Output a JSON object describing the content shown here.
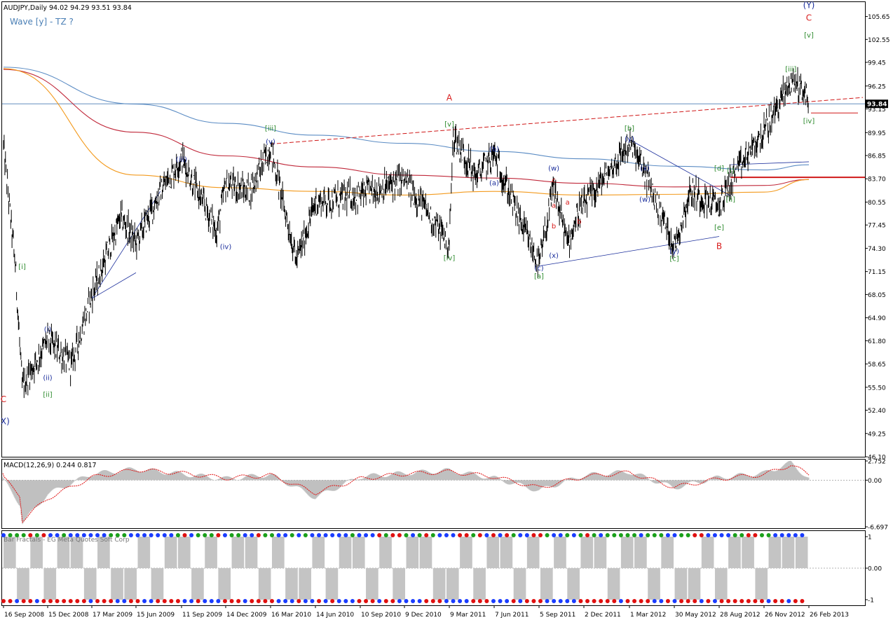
{
  "header": {
    "title": "AUDJPY,Daily  94.02 94.29 93.51 93.84",
    "subtitle": "Wave [y] - TZ ?"
  },
  "colors": {
    "candle": "#000000",
    "price_line": "#4a7fb5",
    "ma_blue": "#5b8cc4",
    "ma_red": "#c0283a",
    "ma_orange": "#f39a1d",
    "trend_red": "#d01818",
    "wave_blue": "#1c2f9c",
    "wave_green": "#2e8b2e",
    "wave_red": "#d81c1c",
    "macd_hist": "#c0c0c0",
    "macd_signal": "#e01010",
    "dot_blue": "#1a3cff",
    "dot_green": "#1aa01a",
    "dot_red": "#e01010"
  },
  "chart_data": [
    {
      "type": "line",
      "name": "AUDJPY Daily price",
      "ylim": [
        46.1,
        107.6
      ],
      "y_ticks": [
        "105.65",
        "102.55",
        "99.45",
        "96.25",
        "93.15",
        "89.95",
        "86.85",
        "83.70",
        "80.55",
        "77.45",
        "74.30",
        "71.15",
        "68.05",
        "64.90",
        "61.80",
        "58.65",
        "55.50",
        "52.40",
        "49.25",
        "46.10"
      ],
      "x_ticks": [
        "16 Sep 2008",
        "15 Dec 2008",
        "17 Mar 2009",
        "15 Jun 2009",
        "11 Sep 2009",
        "14 Dec 2009",
        "16 Mar 2010",
        "14 Jun 2010",
        "10 Sep 2010",
        "9 Dec 2010",
        "9 Mar 2011",
        "7 Jun 2011",
        "5 Sep 2011",
        "2 Dec 2011",
        "1 Mar 2012",
        "30 May 2012",
        "28 Aug 2012",
        "26 Nov 2012",
        "26 Feb 2013"
      ],
      "price_label": "93.84",
      "x": [
        "16 Sep 2008",
        "10 Oct 2008",
        "24 Oct 2008",
        "15 Dec 2008",
        "2 Feb 2009",
        "17 Mar 2009",
        "15 May 2009",
        "15 Jun 2009",
        "1 Aug 2009",
        "11 Sep 2009",
        "25 Nov 2009",
        "14 Dec 2009",
        "1 Feb 2010",
        "16 Mar 2010",
        "7 May 2010",
        "14 Jun 2010",
        "10 Sep 2010",
        "9 Dec 2010",
        "9 Mar 2011",
        "17 Mar 2011",
        "1 May 2011",
        "7 Jun 2011",
        "1 Aug 2011",
        "5 Sep 2011",
        "4 Oct 2011",
        "31 Oct 2011",
        "23 Nov 2011",
        "2 Dec 2011",
        "1 Mar 2012",
        "1 Apr 2012",
        "30 May 2012",
        "1 Jul 2012",
        "28 Aug 2012",
        "20 Sep 2012",
        "26 Nov 2012",
        "20 Jan 2013",
        "12 Feb 2013",
        "26 Feb 2013"
      ],
      "close": [
        88.0,
        72.0,
        55.5,
        62.0,
        58.5,
        68.0,
        78.5,
        75.0,
        82.0,
        86.5,
        76.5,
        83.0,
        82.0,
        88.0,
        72.5,
        80.5,
        81.5,
        83.5,
        75.0,
        89.5,
        84.0,
        87.0,
        77.5,
        72.0,
        82.5,
        75.0,
        79.5,
        80.0,
        88.5,
        84.5,
        74.5,
        82.0,
        80.0,
        83.5,
        90.0,
        97.0,
        96.0,
        93.84
      ],
      "series": [
        {
          "name": "MA (blue)",
          "x": [
            "16 Sep 2008",
            "15 Jun 2009",
            "14 Dec 2009",
            "14 Jun 2010",
            "9 Dec 2010",
            "7 Jun 2011",
            "2 Dec 2011",
            "30 May 2012",
            "26 Nov 2012",
            "26 Feb 2013"
          ],
          "values": [
            98.8,
            93.8,
            91.2,
            89.6,
            88.5,
            87.4,
            86.4,
            85.4,
            84.9,
            85.6
          ]
        },
        {
          "name": "MA (red)",
          "x": [
            "16 Sep 2008",
            "15 Jun 2009",
            "14 Dec 2009",
            "14 Jun 2010",
            "9 Dec 2010",
            "7 Jun 2011",
            "2 Dec 2011",
            "30 May 2012",
            "26 Nov 2012",
            "26 Feb 2013"
          ],
          "values": [
            98.5,
            90.0,
            86.8,
            85.3,
            84.2,
            83.8,
            83.1,
            82.6,
            82.8,
            83.6
          ]
        },
        {
          "name": "MA (orange)",
          "x": [
            "16 Sep 2008",
            "15 Jun 2009",
            "14 Dec 2009",
            "14 Jun 2010",
            "9 Dec 2010",
            "7 Jun 2011",
            "2 Dec 2011",
            "30 May 2012",
            "26 Nov 2012",
            "26 Feb 2013"
          ],
          "values": [
            98.6,
            84.2,
            82.5,
            82.0,
            81.5,
            82.0,
            81.5,
            81.6,
            81.9,
            83.6
          ]
        }
      ],
      "annotations": [
        {
          "text": "C",
          "x": "16 Sep 2008",
          "y": 53.5,
          "color": "red"
        },
        {
          "text": "(X)",
          "x": "16 Sep 2008",
          "y": 50.5,
          "color": "blue"
        },
        {
          "text": "[i]",
          "x": "24 Oct 2008",
          "y": 71.5,
          "color": "green"
        },
        {
          "text": "(i)",
          "x": "15 Dec 2008",
          "y": 63.0,
          "color": "blue"
        },
        {
          "text": "(ii)",
          "x": "15 Dec 2008",
          "y": 56.5,
          "color": "blue"
        },
        {
          "text": "[ii]",
          "x": "15 Dec 2008",
          "y": 54.2,
          "color": "green"
        },
        {
          "text": "(iii)",
          "x": "11 Sep 2009",
          "y": 86.0,
          "color": "blue"
        },
        {
          "text": "(iv)",
          "x": "14 Dec 2009",
          "y": 74.2,
          "color": "blue"
        },
        {
          "text": "[iii]",
          "x": "16 Mar 2010",
          "y": 90.2,
          "color": "green"
        },
        {
          "text": "(v)",
          "x": "16 Mar 2010",
          "y": 88.4,
          "color": "blue"
        },
        {
          "text": "[iv]",
          "x": "9 Mar 2011",
          "y": 72.7,
          "color": "green"
        },
        {
          "text": "[v]",
          "x": "9 Mar 2011",
          "y": 90.8,
          "color": "green"
        },
        {
          "text": "A",
          "x": "9 Mar 2011",
          "y": 94.3,
          "color": "red"
        },
        {
          "text": "(a)",
          "x": "7 Jun 2011",
          "y": 82.8,
          "color": "blue"
        },
        {
          "text": "(b)",
          "x": "7 Jun 2011",
          "y": 87.4,
          "color": "blue"
        },
        {
          "text": "(c)",
          "x": "5 Sep 2011",
          "y": 71.3,
          "color": "blue"
        },
        {
          "text": "[a]",
          "x": "5 Sep 2011",
          "y": 70.2,
          "color": "green"
        },
        {
          "text": "(w)",
          "x": "4 Oct 2011",
          "y": 84.8,
          "color": "blue"
        },
        {
          "text": "(x)",
          "x": "4 Oct 2011",
          "y": 73.0,
          "color": "blue"
        },
        {
          "text": "a",
          "x": "4 Oct 2011",
          "y": 79.8,
          "color": "red"
        },
        {
          "text": "b",
          "x": "4 Oct 2011",
          "y": 77.0,
          "color": "red"
        },
        {
          "text": "c",
          "x": "4 Oct 2011",
          "y": 83.2,
          "color": "red"
        },
        {
          "text": "a",
          "x": "31 Oct 2011",
          "y": 80.2,
          "color": "red"
        },
        {
          "text": "b",
          "x": "23 Nov 2011",
          "y": 77.6,
          "color": "red"
        },
        {
          "text": "[b]",
          "x": "1 Mar 2012",
          "y": 90.2,
          "color": "green"
        },
        {
          "text": "(y)",
          "x": "1 Mar 2012",
          "y": 88.8,
          "color": "blue"
        },
        {
          "text": "(x)",
          "x": "1 Apr 2012",
          "y": 84.8,
          "color": "blue"
        },
        {
          "text": "(w)",
          "x": "1 Apr 2012",
          "y": 80.6,
          "color": "blue"
        },
        {
          "text": "(y)",
          "x": "30 May 2012",
          "y": 73.6,
          "color": "blue"
        },
        {
          "text": "[c]",
          "x": "30 May 2012",
          "y": 72.6,
          "color": "green"
        },
        {
          "text": "[d]",
          "x": "28 Aug 2012",
          "y": 84.8,
          "color": "green"
        },
        {
          "text": "[e]",
          "x": "28 Aug 2012",
          "y": 76.8,
          "color": "green"
        },
        {
          "text": "B",
          "x": "28 Aug 2012",
          "y": 74.2,
          "color": "red"
        },
        {
          "text": "[i]",
          "x": "20 Sep 2012",
          "y": 84.5,
          "color": "green"
        },
        {
          "text": "[ii]",
          "x": "20 Sep 2012",
          "y": 80.6,
          "color": "green"
        },
        {
          "text": "[iii]",
          "x": "20 Jan 2013",
          "y": 98.2,
          "color": "green"
        },
        {
          "text": "[iv]",
          "x": "26 Feb 2013",
          "y": 91.2,
          "color": "green"
        },
        {
          "text": "(Y)",
          "x": "26 Feb 2013",
          "y": 106.8,
          "color": "blue"
        },
        {
          "text": "C",
          "x": "26 Feb 2013",
          "y": 105.1,
          "color": "red"
        },
        {
          "text": "[v]",
          "x": "26 Feb 2013",
          "y": 102.8,
          "color": "green"
        }
      ]
    },
    {
      "type": "area",
      "title": "MACD(12,26,9) 0.244 0.817",
      "ylim": [
        -6.697,
        2.752
      ],
      "y_ticks": [
        "2.752",
        "0.00",
        "-6.697"
      ],
      "x": [
        "16 Sep 2008",
        "20 Oct 2008",
        "24 Oct 2008",
        "15 Dec 2008",
        "17 Mar 2009",
        "15 Jun 2009",
        "11 Sep 2009",
        "14 Dec 2009",
        "16 Mar 2010",
        "14 Jun 2010",
        "10 Sep 2010",
        "9 Dec 2010",
        "9 Mar 2011",
        "7 Jun 2011",
        "5 Sep 2011",
        "2 Dec 2011",
        "1 Mar 2012",
        "30 May 2012",
        "28 Aug 2012",
        "26 Nov 2012",
        "20 Jan 2013",
        "26 Feb 2013"
      ],
      "series": [
        {
          "name": "MACD",
          "values": [
            0.0,
            -3.5,
            -6.2,
            -2.0,
            0.9,
            1.6,
            0.9,
            0.2,
            0.8,
            -2.5,
            0.5,
            1.0,
            1.4,
            0.3,
            -1.5,
            0.7,
            1.2,
            -1.1,
            0.4,
            1.0,
            2.5,
            0.244
          ]
        },
        {
          "name": "Signal",
          "values": [
            0.3,
            -2.2,
            -5.8,
            -2.6,
            0.4,
            1.5,
            1.0,
            0.3,
            0.7,
            -1.8,
            0.2,
            0.9,
            1.2,
            0.5,
            -1.1,
            0.5,
            1.1,
            -1.0,
            0.2,
            0.8,
            2.2,
            0.817
          ]
        }
      ]
    },
    {
      "type": "bar",
      "ylim": [
        -1,
        1
      ],
      "y_ticks": [
        "1",
        "0.00",
        "-1"
      ],
      "series": [
        {
          "name": "Signal state",
          "values": [
            1,
            -1,
            1,
            -1,
            1,
            1,
            -1,
            1,
            -1,
            -1,
            1,
            -1,
            1,
            1,
            -1,
            1,
            -1,
            1,
            1,
            -1,
            1,
            -1,
            -1,
            1,
            -1,
            1,
            1,
            -1,
            1,
            -1,
            1,
            1,
            -1,
            -1,
            1,
            -1,
            1,
            1,
            -1,
            1,
            -1,
            1,
            -1,
            1,
            1,
            -1,
            1,
            1,
            -1,
            1,
            -1,
            -1,
            1,
            -1,
            1,
            1,
            -1,
            1,
            1,
            1
          ]
        }
      ],
      "overlay_text": "Bar Fractals - EG  Meta Quotes Soft Corp"
    }
  ]
}
